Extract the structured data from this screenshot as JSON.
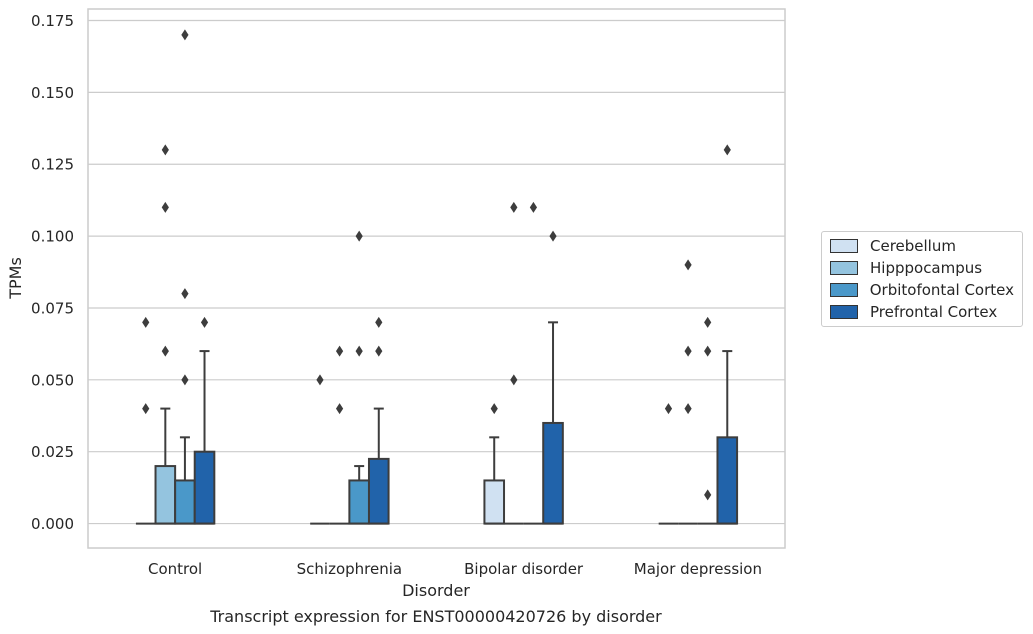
{
  "chart_data": {
    "type": "box",
    "title": "Transcript expression for ENST00000420726 by disorder",
    "xlabel": "Disorder",
    "ylabel": "TPMs",
    "ylim": [
      -0.0085,
      0.179
    ],
    "yticks": [
      "0.000",
      "0.025",
      "0.050",
      "0.075",
      "0.100",
      "0.125",
      "0.150",
      "0.175"
    ],
    "categories": [
      "Control",
      "Schizophrenia",
      "Bipolar disorder",
      "Major depression"
    ],
    "grid": true,
    "legend_position": "right",
    "series": [
      {
        "name": "Cerebellum",
        "color": "#d0e1f2",
        "boxes": [
          {
            "q1": 0,
            "median": 0,
            "q3": 0,
            "whisker_low": 0,
            "whisker_high": 0,
            "outliers": [
              0.07,
              0.04
            ]
          },
          {
            "q1": 0,
            "median": 0,
            "q3": 0,
            "whisker_low": 0,
            "whisker_high": 0,
            "outliers": [
              0.05
            ]
          },
          {
            "q1": 0,
            "median": 0,
            "q3": 0.015,
            "whisker_low": 0,
            "whisker_high": 0.03,
            "outliers": [
              0.04
            ]
          },
          {
            "q1": 0,
            "median": 0,
            "q3": 0,
            "whisker_low": 0,
            "whisker_high": 0,
            "outliers": [
              0.04
            ]
          }
        ]
      },
      {
        "name": "Hipppocampus",
        "color": "#94c4df",
        "boxes": [
          {
            "q1": 0,
            "median": 0,
            "q3": 0.02,
            "whisker_low": 0,
            "whisker_high": 0.04,
            "outliers": [
              0.13,
              0.11,
              0.06
            ]
          },
          {
            "q1": 0,
            "median": 0,
            "q3": 0,
            "whisker_low": 0,
            "whisker_high": 0,
            "outliers": [
              0.06,
              0.04
            ]
          },
          {
            "q1": 0,
            "median": 0,
            "q3": 0,
            "whisker_low": 0,
            "whisker_high": 0,
            "outliers": [
              0.11,
              0.05
            ]
          },
          {
            "q1": 0,
            "median": 0,
            "q3": 0,
            "whisker_low": 0,
            "whisker_high": 0,
            "outliers": [
              0.09,
              0.06,
              0.04
            ]
          }
        ]
      },
      {
        "name": "Orbitofontal Cortex",
        "color": "#4a98c9",
        "boxes": [
          {
            "q1": 0,
            "median": 0,
            "q3": 0.015,
            "whisker_low": 0,
            "whisker_high": 0.03,
            "outliers": [
              0.17,
              0.08,
              0.05
            ]
          },
          {
            "q1": 0,
            "median": 0,
            "q3": 0.015,
            "whisker_low": 0,
            "whisker_high": 0.02,
            "outliers": [
              0.1,
              0.06
            ]
          },
          {
            "q1": 0,
            "median": 0,
            "q3": 0,
            "whisker_low": 0,
            "whisker_high": 0,
            "outliers": [
              0.11
            ]
          },
          {
            "q1": 0,
            "median": 0,
            "q3": 0,
            "whisker_low": 0,
            "whisker_high": 0,
            "outliers": [
              0.07,
              0.06,
              0.01
            ]
          }
        ]
      },
      {
        "name": "Prefrontal Cortex",
        "color": "#2163aa",
        "boxes": [
          {
            "q1": 0,
            "median": 0,
            "q3": 0.025,
            "whisker_low": 0,
            "whisker_high": 0.06,
            "outliers": [
              0.07
            ]
          },
          {
            "q1": 0,
            "median": 0,
            "q3": 0.0225,
            "whisker_low": 0,
            "whisker_high": 0.04,
            "outliers": [
              0.07,
              0.06
            ]
          },
          {
            "q1": 0,
            "median": 0,
            "q3": 0.035,
            "whisker_low": 0,
            "whisker_high": 0.07,
            "outliers": [
              0.1
            ]
          },
          {
            "q1": 0,
            "median": 0,
            "q3": 0.03,
            "whisker_low": 0,
            "whisker_high": 0.06,
            "outliers": [
              0.13
            ]
          }
        ]
      }
    ]
  }
}
